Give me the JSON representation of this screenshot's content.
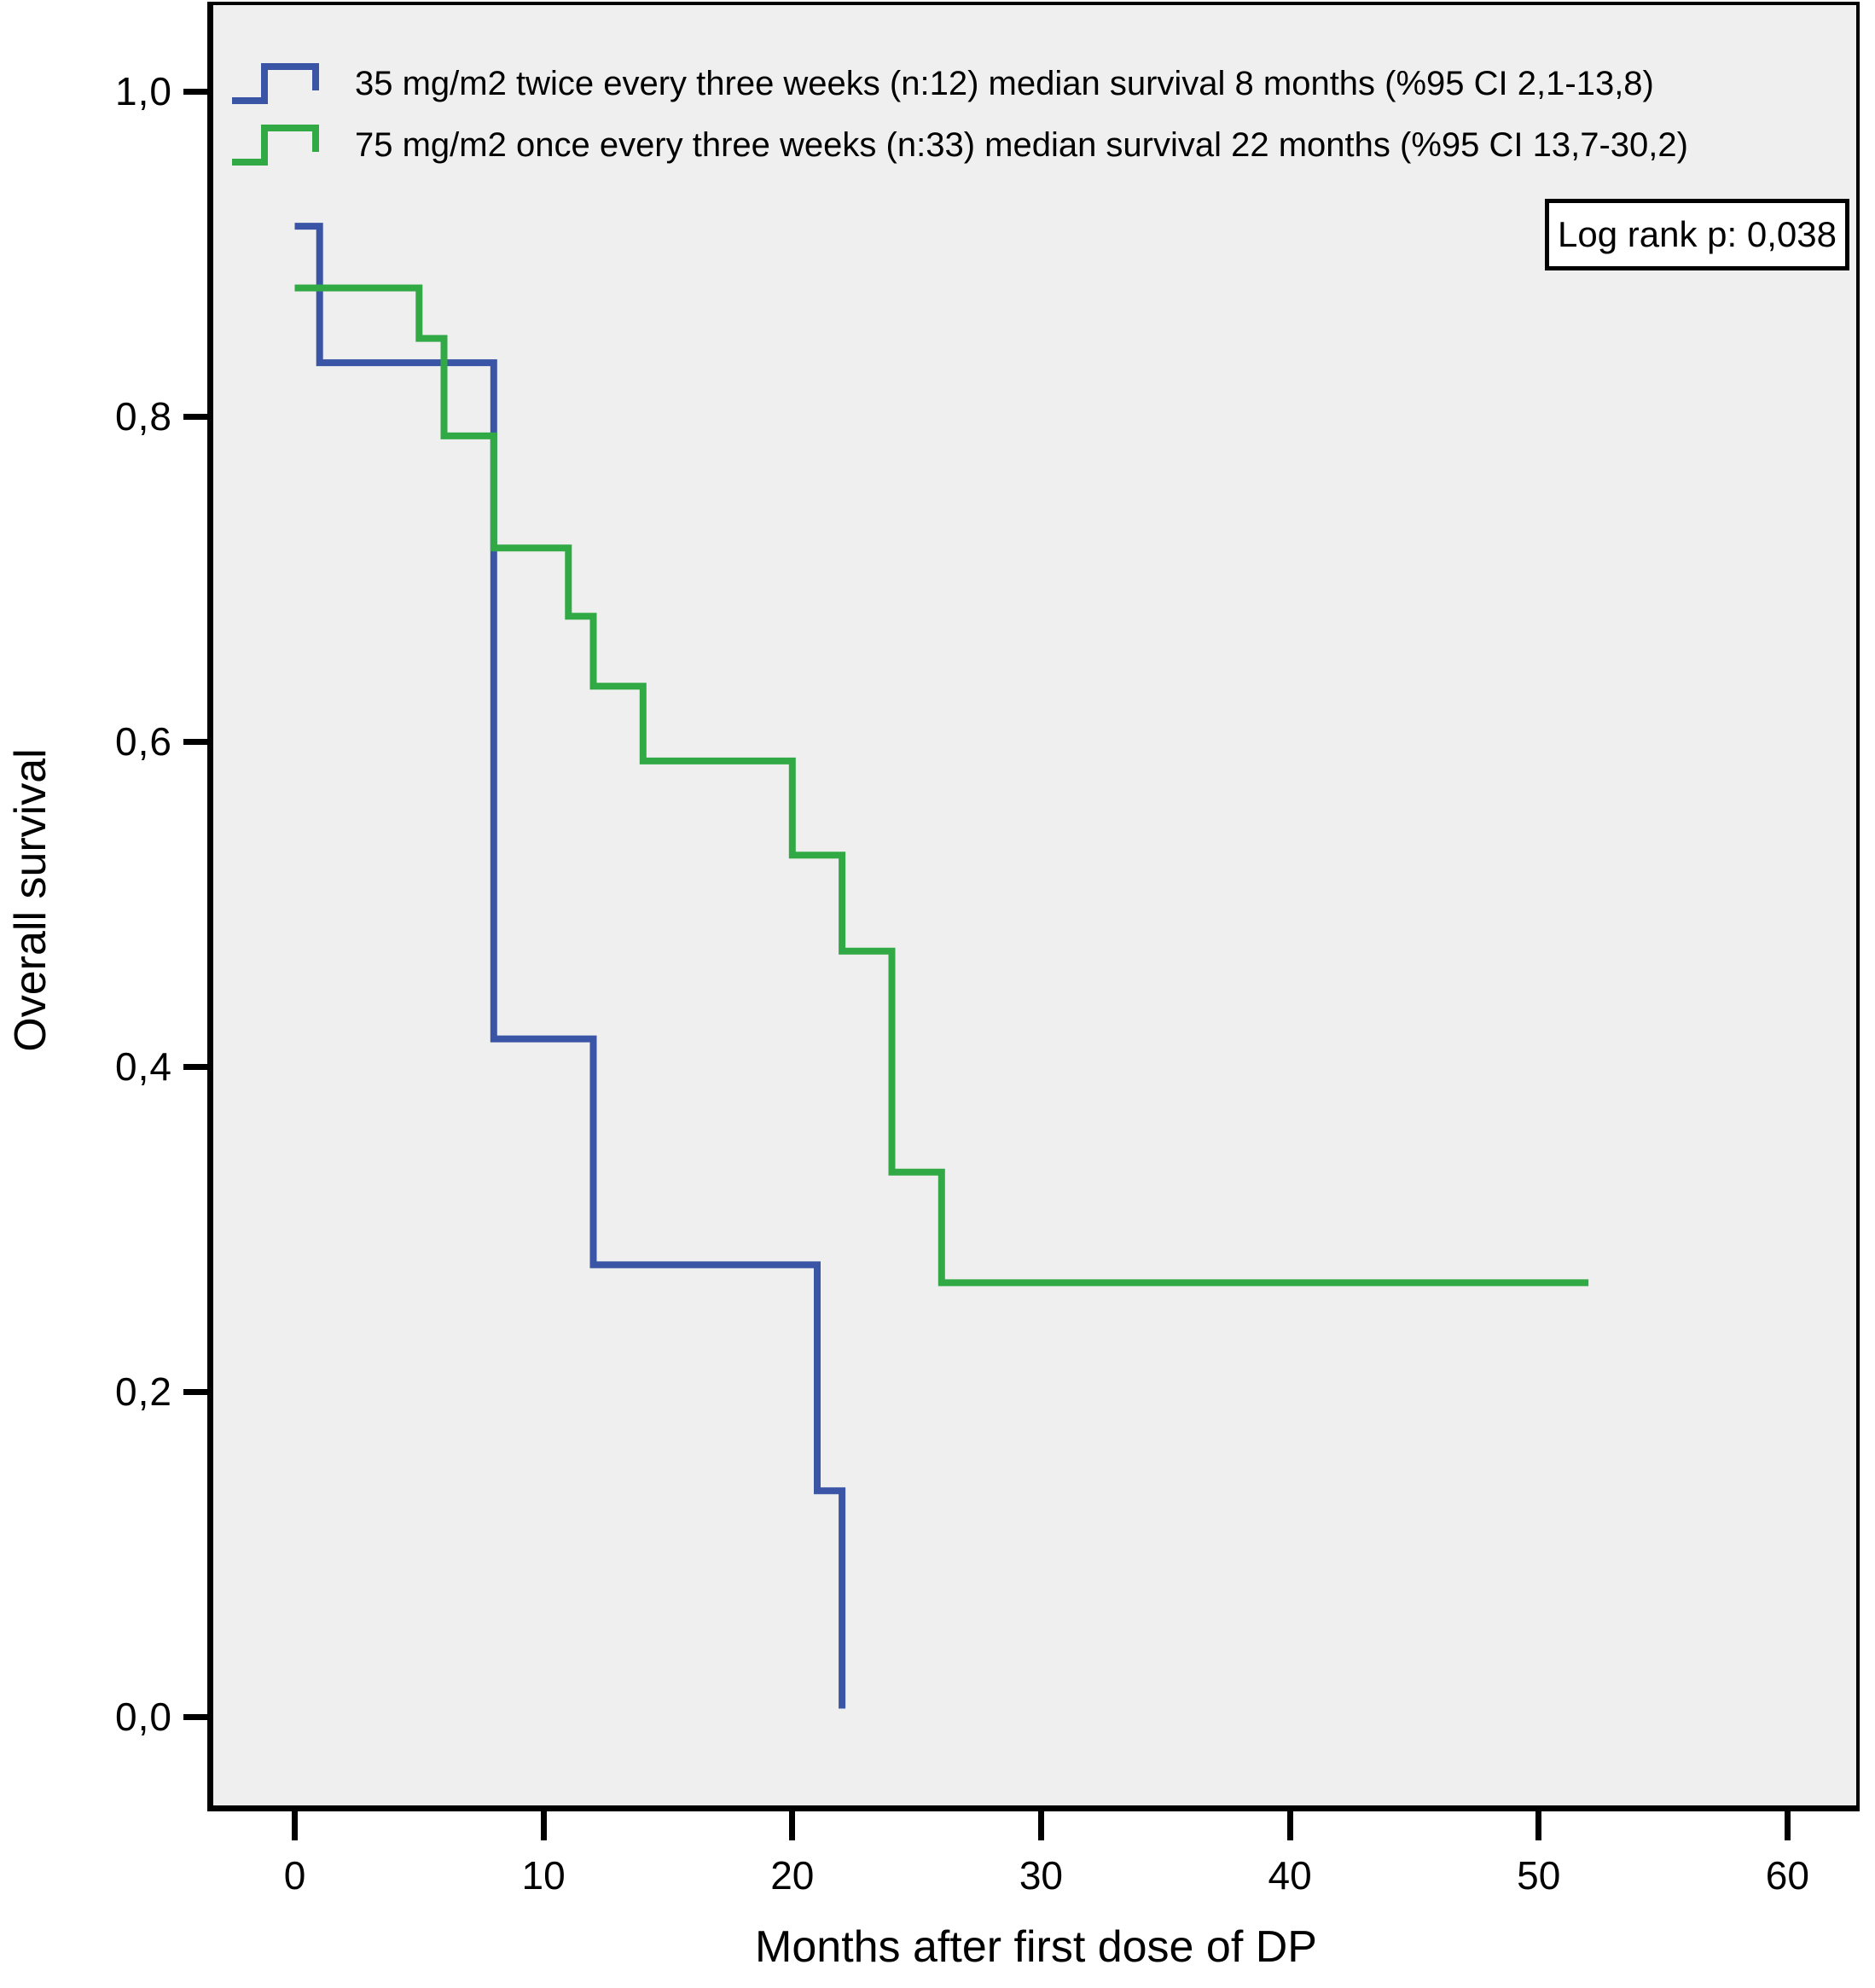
{
  "chart_data": {
    "type": "line",
    "subtype": "kaplan-meier-step-curves",
    "title": "",
    "xlabel": "Months after first dose of DP",
    "ylabel": "Overall survival",
    "xlim": [
      0,
      60
    ],
    "ylim": [
      0.0,
      1.0
    ],
    "grid": false,
    "legend_position": "top-left-inside",
    "plot_bg": "#EFEFEF",
    "annotation": "Log rank p: 0,038",
    "x_ticks": [
      {
        "v": 0,
        "label": "0"
      },
      {
        "v": 10,
        "label": "10"
      },
      {
        "v": 20,
        "label": "20"
      },
      {
        "v": 30,
        "label": "30"
      },
      {
        "v": 40,
        "label": "40"
      },
      {
        "v": 50,
        "label": "50"
      },
      {
        "v": 60,
        "label": "60"
      }
    ],
    "y_ticks": [
      {
        "v": 1.0,
        "label": "1,0"
      },
      {
        "v": 0.8,
        "label": "0,8"
      },
      {
        "v": 0.6,
        "label": "0,6"
      },
      {
        "v": 0.4,
        "label": "0,4"
      },
      {
        "v": 0.2,
        "label": "0,2"
      },
      {
        "v": 0.0,
        "label": "0,0"
      }
    ],
    "series": [
      {
        "label": "35 mg/m2 twice every three weeks (n:12) median survival 8 months (%95 CI 2,1-13,8)",
        "color": "#3A55A6",
        "points": [
          [
            0,
            0.917
          ],
          [
            1,
            0.917
          ],
          [
            1,
            0.833
          ],
          [
            8,
            0.833
          ],
          [
            8,
            0.417
          ],
          [
            12,
            0.417
          ],
          [
            12,
            0.278
          ],
          [
            21,
            0.278
          ],
          [
            21,
            0.139
          ],
          [
            22,
            0.139
          ],
          [
            22,
            0.005
          ]
        ]
      },
      {
        "label": "75 mg/m2 once every three weeks (n:33) median survival 22 months (%95 CI 13,7-30,2)",
        "color": "#31A944",
        "points": [
          [
            0,
            0.879
          ],
          [
            5,
            0.879
          ],
          [
            5,
            0.848
          ],
          [
            6,
            0.848
          ],
          [
            6,
            0.788
          ],
          [
            8,
            0.788
          ],
          [
            8,
            0.719
          ],
          [
            11,
            0.719
          ],
          [
            11,
            0.677
          ],
          [
            12,
            0.677
          ],
          [
            12,
            0.634
          ],
          [
            14,
            0.634
          ],
          [
            14,
            0.588
          ],
          [
            20,
            0.588
          ],
          [
            20,
            0.53
          ],
          [
            22,
            0.53
          ],
          [
            22,
            0.471
          ],
          [
            24,
            0.471
          ],
          [
            24,
            0.335
          ],
          [
            26,
            0.335
          ],
          [
            26,
            0.267
          ],
          [
            52,
            0.267
          ]
        ]
      }
    ]
  }
}
